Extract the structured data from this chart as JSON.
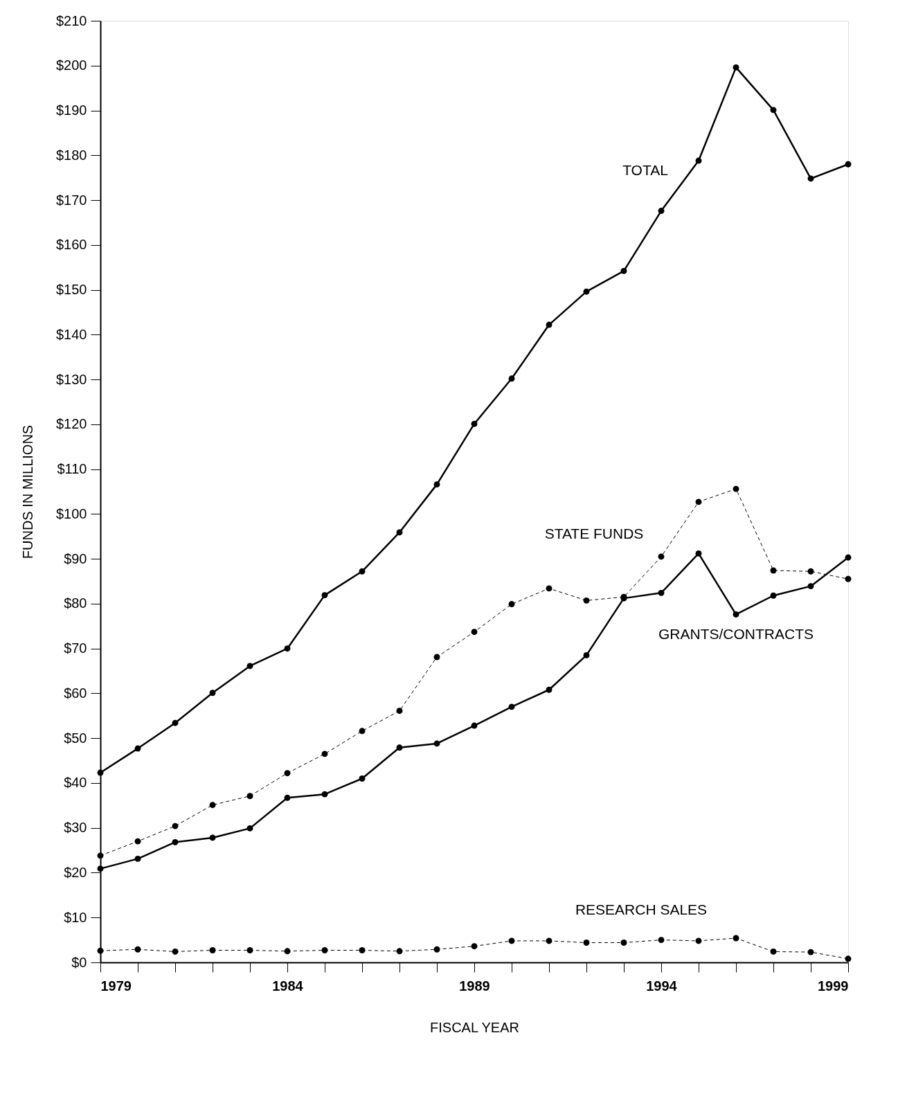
{
  "chart_data": {
    "type": "line",
    "xlabel": "FISCAL YEAR",
    "ylabel": "FUNDS IN MILLIONS",
    "x": [
      1979,
      1980,
      1981,
      1982,
      1983,
      1984,
      1985,
      1986,
      1987,
      1988,
      1989,
      1990,
      1991,
      1992,
      1993,
      1994,
      1995,
      1996,
      1997,
      1998,
      1999
    ],
    "series": [
      {
        "name": "TOTAL",
        "color": "#000000",
        "line_style": "solid",
        "values": [
          42.3,
          47.7,
          53.4,
          60.1,
          66.1,
          70.0,
          81.9,
          87.2,
          95.9,
          106.6,
          120.1,
          130.2,
          142.2,
          149.6,
          154.2,
          167.6,
          178.8,
          199.6,
          190.1,
          174.8,
          178.0
        ]
      },
      {
        "name": "STATE FUNDS",
        "color": "#000000",
        "line_style": "dashed",
        "values": [
          23.8,
          27.0,
          30.4,
          35.1,
          37.1,
          42.2,
          46.5,
          51.6,
          56.1,
          68.1,
          73.7,
          79.9,
          83.4,
          80.7,
          81.5,
          90.5,
          102.7,
          105.6,
          87.4,
          87.2,
          85.5
        ]
      },
      {
        "name": "GRANTS/CONTRACTS",
        "color": "#000000",
        "line_style": "solid",
        "values": [
          20.9,
          23.1,
          26.8,
          27.8,
          29.9,
          36.7,
          37.5,
          41.0,
          47.9,
          48.8,
          52.8,
          57.0,
          60.8,
          68.5,
          81.2,
          82.4,
          91.2,
          77.6,
          81.8,
          83.9,
          90.3
        ]
      },
      {
        "name": "RESEARCH SALES",
        "color": "#000000",
        "line_style": "dashed",
        "values": [
          2.6,
          2.9,
          2.4,
          2.7,
          2.7,
          2.5,
          2.7,
          2.7,
          2.5,
          2.9,
          3.6,
          4.8,
          4.8,
          4.4,
          4.4,
          5.0,
          4.8,
          5.4,
          2.4,
          2.3,
          0.8
        ]
      }
    ],
    "xlim": [
      1979,
      1999
    ],
    "xticks": [
      1979,
      {
        "value": 1980,
        "label": null
      },
      {
        "value": 1981,
        "label": null
      },
      {
        "value": 1982,
        "label": null
      },
      {
        "value": 1983,
        "label": null
      },
      1984,
      {
        "value": 1985,
        "label": null
      },
      {
        "value": 1986,
        "label": null
      },
      {
        "value": 1987,
        "label": null
      },
      {
        "value": 1988,
        "label": null
      },
      1989,
      {
        "value": 1990,
        "label": null
      },
      {
        "value": 1991,
        "label": null
      },
      {
        "value": 1992,
        "label": null
      },
      {
        "value": 1993,
        "label": null
      },
      1994,
      {
        "value": 1995,
        "label": null
      },
      {
        "value": 1996,
        "label": null
      },
      {
        "value": 1997,
        "label": null
      },
      {
        "value": 1998,
        "label": null
      },
      1999
    ],
    "ylim": [
      0,
      210
    ],
    "yticks": [
      {
        "value": 0,
        "label": "$0"
      },
      {
        "value": 10,
        "label": "$10"
      },
      {
        "value": 20,
        "label": "$20"
      },
      {
        "value": 30,
        "label": "$30"
      },
      {
        "value": 40,
        "label": "$40"
      },
      {
        "value": 50,
        "label": "$50"
      },
      {
        "value": 60,
        "label": "$60"
      },
      {
        "value": 70,
        "label": "$70"
      },
      {
        "value": 80,
        "label": "$80"
      },
      {
        "value": 90,
        "label": "$90"
      },
      {
        "value": 100,
        "label": "$100"
      },
      {
        "value": 110,
        "label": "$110"
      },
      {
        "value": 120,
        "label": "$120"
      },
      {
        "value": 130,
        "label": "$130"
      },
      {
        "value": 140,
        "label": "$140"
      },
      {
        "value": 150,
        "label": "$150"
      },
      {
        "value": 160,
        "label": "$160"
      },
      {
        "value": 170,
        "label": "$170"
      },
      {
        "value": 180,
        "label": "$180"
      },
      {
        "value": 190,
        "label": "$190"
      },
      {
        "value": 200,
        "label": "$200"
      },
      {
        "value": 210,
        "label": "$210"
      }
    ],
    "grid": false,
    "legend": false,
    "marker": "circle"
  }
}
